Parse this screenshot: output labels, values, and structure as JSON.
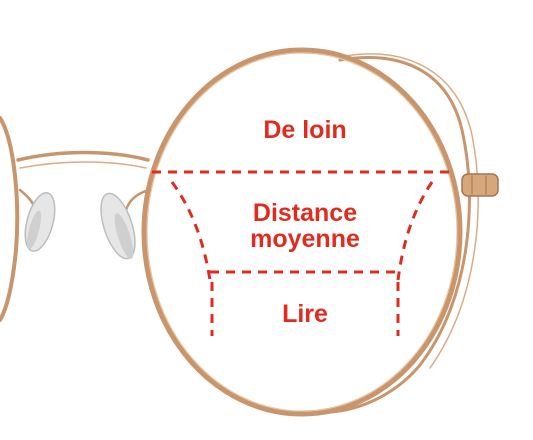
{
  "zones": {
    "far": "De loin",
    "intermediate_line1": "Distance",
    "intermediate_line2": "moyenne",
    "near": "Lire"
  },
  "colors": {
    "accent": "#e02b1e",
    "frame_gold": "#c9956c",
    "frame_gold_dark": "#a8734e",
    "nose_pad": "#e6e6e6",
    "background": "#ffffff"
  },
  "icons": {
    "frame": "eyeglasses-frame-illustration"
  }
}
